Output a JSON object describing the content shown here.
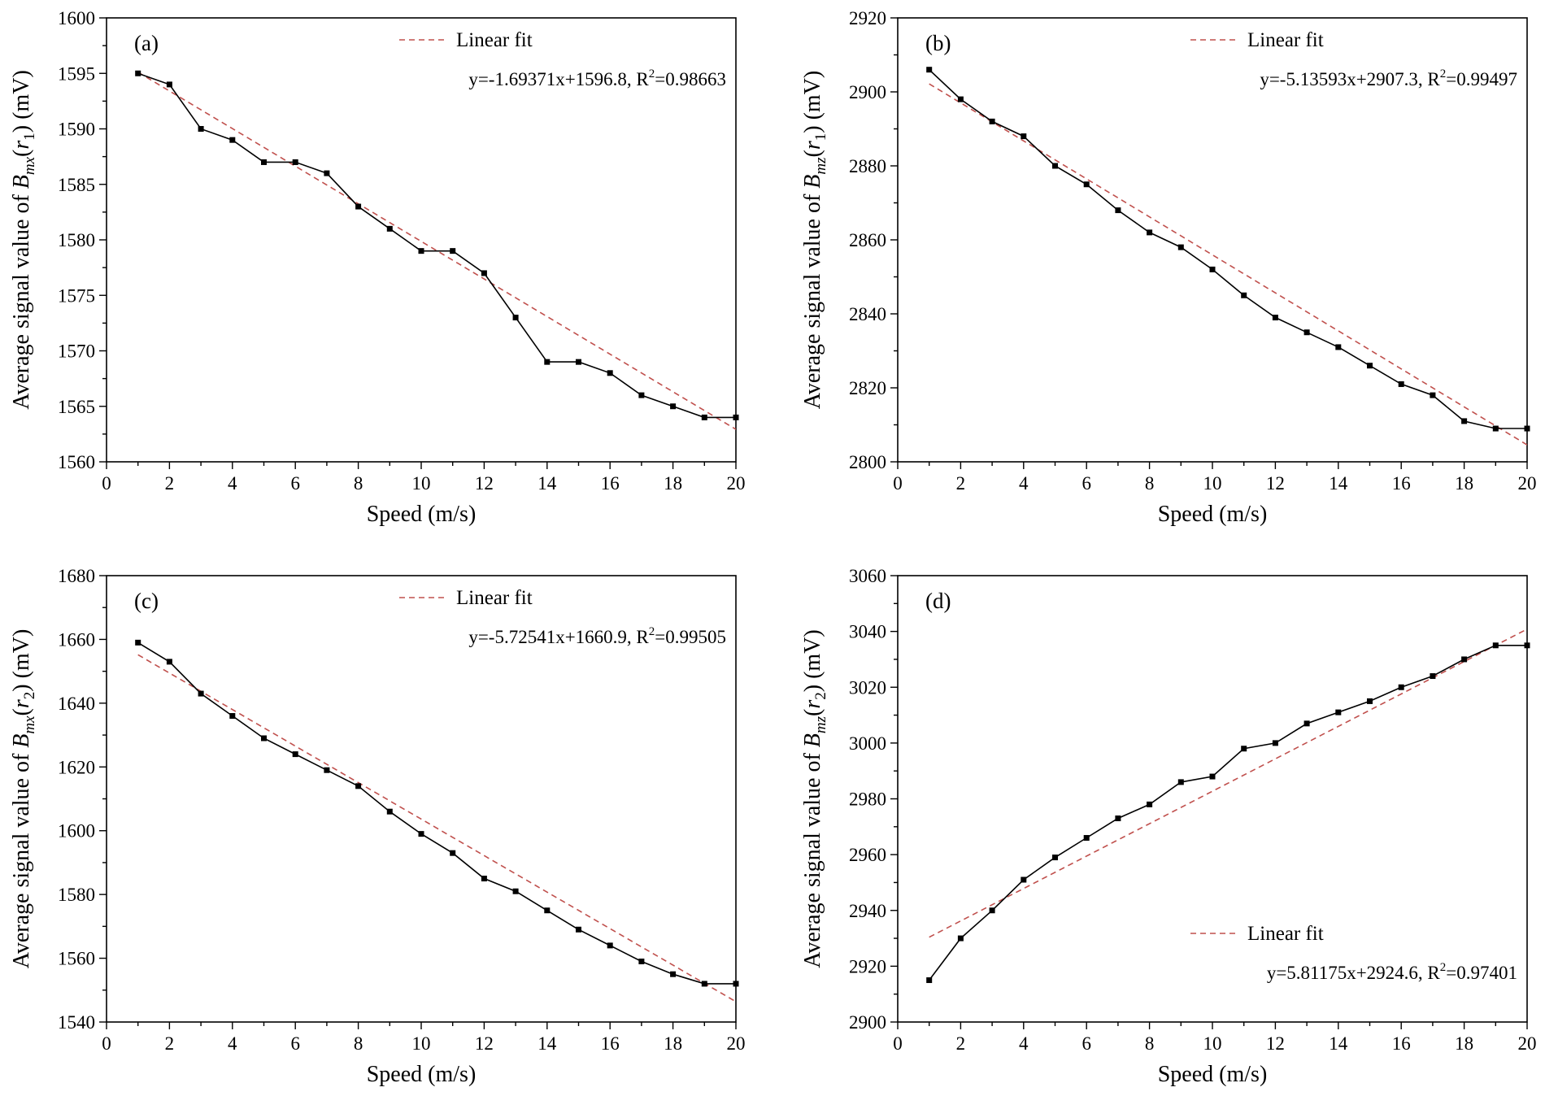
{
  "chart_data": [
    {
      "type": "line",
      "panel_label": "(a)",
      "xlabel": "Speed (m/s)",
      "ylabel": {
        "prefix": "Average signal value of ",
        "var": "B",
        "sub": "mx",
        "arg": "r",
        "arg_sub": "1",
        "suffix": " (mV)"
      },
      "xlim": [
        0,
        20
      ],
      "ylim": [
        1560,
        1600
      ],
      "xticks": [
        0,
        2,
        4,
        6,
        8,
        10,
        12,
        14,
        16,
        18,
        20
      ],
      "yticks": [
        1560,
        1565,
        1570,
        1575,
        1580,
        1585,
        1590,
        1595,
        1600
      ],
      "x": [
        1,
        2,
        3,
        4,
        5,
        6,
        7,
        8,
        9,
        10,
        11,
        12,
        13,
        14,
        15,
        16,
        17,
        18,
        19,
        20
      ],
      "values": [
        1595,
        1594,
        1590,
        1589,
        1587,
        1587,
        1586,
        1583,
        1581,
        1579,
        1579,
        1577,
        1573,
        1569,
        1569,
        1568,
        1566,
        1565,
        1564,
        1564
      ],
      "fit": {
        "slope": -1.69371,
        "intercept": 1596.8
      },
      "legend": {
        "label": "Linear fit",
        "equation_main": "y=-1.69371x+1596.8, R",
        "equation_sup": "2",
        "equation_tail": "=0.98663",
        "position": "top-right"
      },
      "fit_color": "#c0504d"
    },
    {
      "type": "line",
      "panel_label": "(b)",
      "xlabel": "Speed (m/s)",
      "ylabel": {
        "prefix": "Average signal value of ",
        "var": "B",
        "sub": "mz",
        "arg": "r",
        "arg_sub": "1",
        "suffix": " (mV)"
      },
      "xlim": [
        0,
        20
      ],
      "ylim": [
        2800,
        2920
      ],
      "xticks": [
        0,
        2,
        4,
        6,
        8,
        10,
        12,
        14,
        16,
        18,
        20
      ],
      "yticks": [
        2800,
        2820,
        2840,
        2860,
        2880,
        2900,
        2920
      ],
      "x": [
        1,
        2,
        3,
        4,
        5,
        6,
        7,
        8,
        9,
        10,
        11,
        12,
        13,
        14,
        15,
        16,
        17,
        18,
        19,
        20
      ],
      "values": [
        2906,
        2898,
        2892,
        2888,
        2880,
        2875,
        2868,
        2862,
        2858,
        2852,
        2845,
        2839,
        2835,
        2831,
        2826,
        2821,
        2818,
        2811,
        2809,
        2809
      ],
      "fit": {
        "slope": -5.13593,
        "intercept": 2907.3
      },
      "legend": {
        "label": "Linear fit",
        "equation_main": "y=-5.13593x+2907.3, R",
        "equation_sup": "2",
        "equation_tail": "=0.99497",
        "position": "top-right"
      },
      "fit_color": "#c0504d"
    },
    {
      "type": "line",
      "panel_label": "(c)",
      "xlabel": "Speed (m/s)",
      "ylabel": {
        "prefix": "Average signal value of ",
        "var": "B",
        "sub": "mx",
        "arg": "r",
        "arg_sub": "2",
        "suffix": " (mV)"
      },
      "xlim": [
        0,
        20
      ],
      "ylim": [
        1540,
        1680
      ],
      "xticks": [
        0,
        2,
        4,
        6,
        8,
        10,
        12,
        14,
        16,
        18,
        20
      ],
      "yticks": [
        1540,
        1560,
        1580,
        1600,
        1620,
        1640,
        1660,
        1680
      ],
      "x": [
        1,
        2,
        3,
        4,
        5,
        6,
        7,
        8,
        9,
        10,
        11,
        12,
        13,
        14,
        15,
        16,
        17,
        18,
        19,
        20
      ],
      "values": [
        1659,
        1653,
        1643,
        1636,
        1629,
        1624,
        1619,
        1614,
        1606,
        1599,
        1593,
        1585,
        1581,
        1575,
        1569,
        1564,
        1559,
        1555,
        1552,
        1552
      ],
      "fit": {
        "slope": -5.72541,
        "intercept": 1660.9
      },
      "legend": {
        "label": "Linear fit",
        "equation_main": "y=-5.72541x+1660.9, R",
        "equation_sup": "2",
        "equation_tail": "=0.99505",
        "position": "top-right"
      },
      "fit_color": "#c0504d"
    },
    {
      "type": "line",
      "panel_label": "(d)",
      "xlabel": "Speed (m/s)",
      "ylabel": {
        "prefix": "Average signal value of ",
        "var": "B",
        "sub": "mz",
        "arg": "r",
        "arg_sub": "2",
        "suffix": " (mV)"
      },
      "xlim": [
        0,
        20
      ],
      "ylim": [
        2900,
        3060
      ],
      "xticks": [
        0,
        2,
        4,
        6,
        8,
        10,
        12,
        14,
        16,
        18,
        20
      ],
      "yticks": [
        2900,
        2920,
        2940,
        2960,
        2980,
        3000,
        3020,
        3040,
        3060
      ],
      "x": [
        1,
        2,
        3,
        4,
        5,
        6,
        7,
        8,
        9,
        10,
        11,
        12,
        13,
        14,
        15,
        16,
        17,
        18,
        19,
        20
      ],
      "values": [
        2915,
        2930,
        2940,
        2951,
        2959,
        2966,
        2973,
        2978,
        2986,
        2988,
        2998,
        3000,
        3007,
        3011,
        3015,
        3020,
        3024,
        3030,
        3035,
        3035
      ],
      "fit": {
        "slope": 5.81175,
        "intercept": 2924.6
      },
      "legend": {
        "label": "Linear fit",
        "equation_main": "y=5.81175x+2924.6, R",
        "equation_sup": "2",
        "equation_tail": "=0.97401",
        "position": "bottom-right"
      },
      "fit_color": "#c0504d"
    }
  ]
}
